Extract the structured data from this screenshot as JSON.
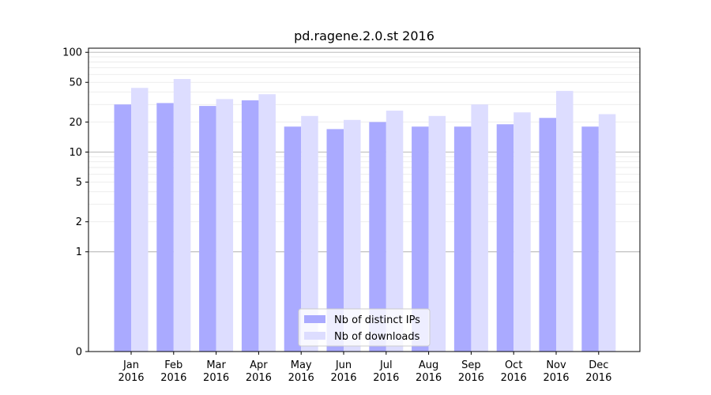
{
  "chart_data": {
    "type": "bar",
    "title": "pd.ragene.2.0.st 2016",
    "xlabel": "",
    "ylabel": "",
    "y_scale": "symlog",
    "ylim": [
      0,
      110
    ],
    "yticks": [
      0,
      1,
      2,
      5,
      10,
      20,
      50,
      100
    ],
    "ytick_labels": [
      "0",
      "1",
      "2",
      "5",
      "10",
      "20",
      "50",
      "100"
    ],
    "categories": [
      "Jan\n2016",
      "Feb\n2016",
      "Mar\n2016",
      "Apr\n2016",
      "May\n2016",
      "Jun\n2016",
      "Jul\n2016",
      "Aug\n2016",
      "Sep\n2016",
      "Oct\n2016",
      "Nov\n2016",
      "Dec\n2016"
    ],
    "category_lines": [
      [
        "Jan",
        "2016"
      ],
      [
        "Feb",
        "2016"
      ],
      [
        "Mar",
        "2016"
      ],
      [
        "Apr",
        "2016"
      ],
      [
        "May",
        "2016"
      ],
      [
        "Jun",
        "2016"
      ],
      [
        "Jul",
        "2016"
      ],
      [
        "Aug",
        "2016"
      ],
      [
        "Sep",
        "2016"
      ],
      [
        "Oct",
        "2016"
      ],
      [
        "Nov",
        "2016"
      ],
      [
        "Dec",
        "2016"
      ]
    ],
    "series": [
      {
        "name": "Nb of distinct IPs",
        "color": "#aaaaff",
        "values": [
          30,
          31,
          29,
          33,
          18,
          17,
          20,
          18,
          18,
          19,
          22,
          18
        ]
      },
      {
        "name": "Nb of downloads",
        "color": "#ddddff",
        "values": [
          44,
          54,
          34,
          38,
          23,
          21,
          26,
          23,
          30,
          25,
          41,
          24
        ]
      }
    ],
    "legend_position": "lower-center",
    "grid": true
  }
}
